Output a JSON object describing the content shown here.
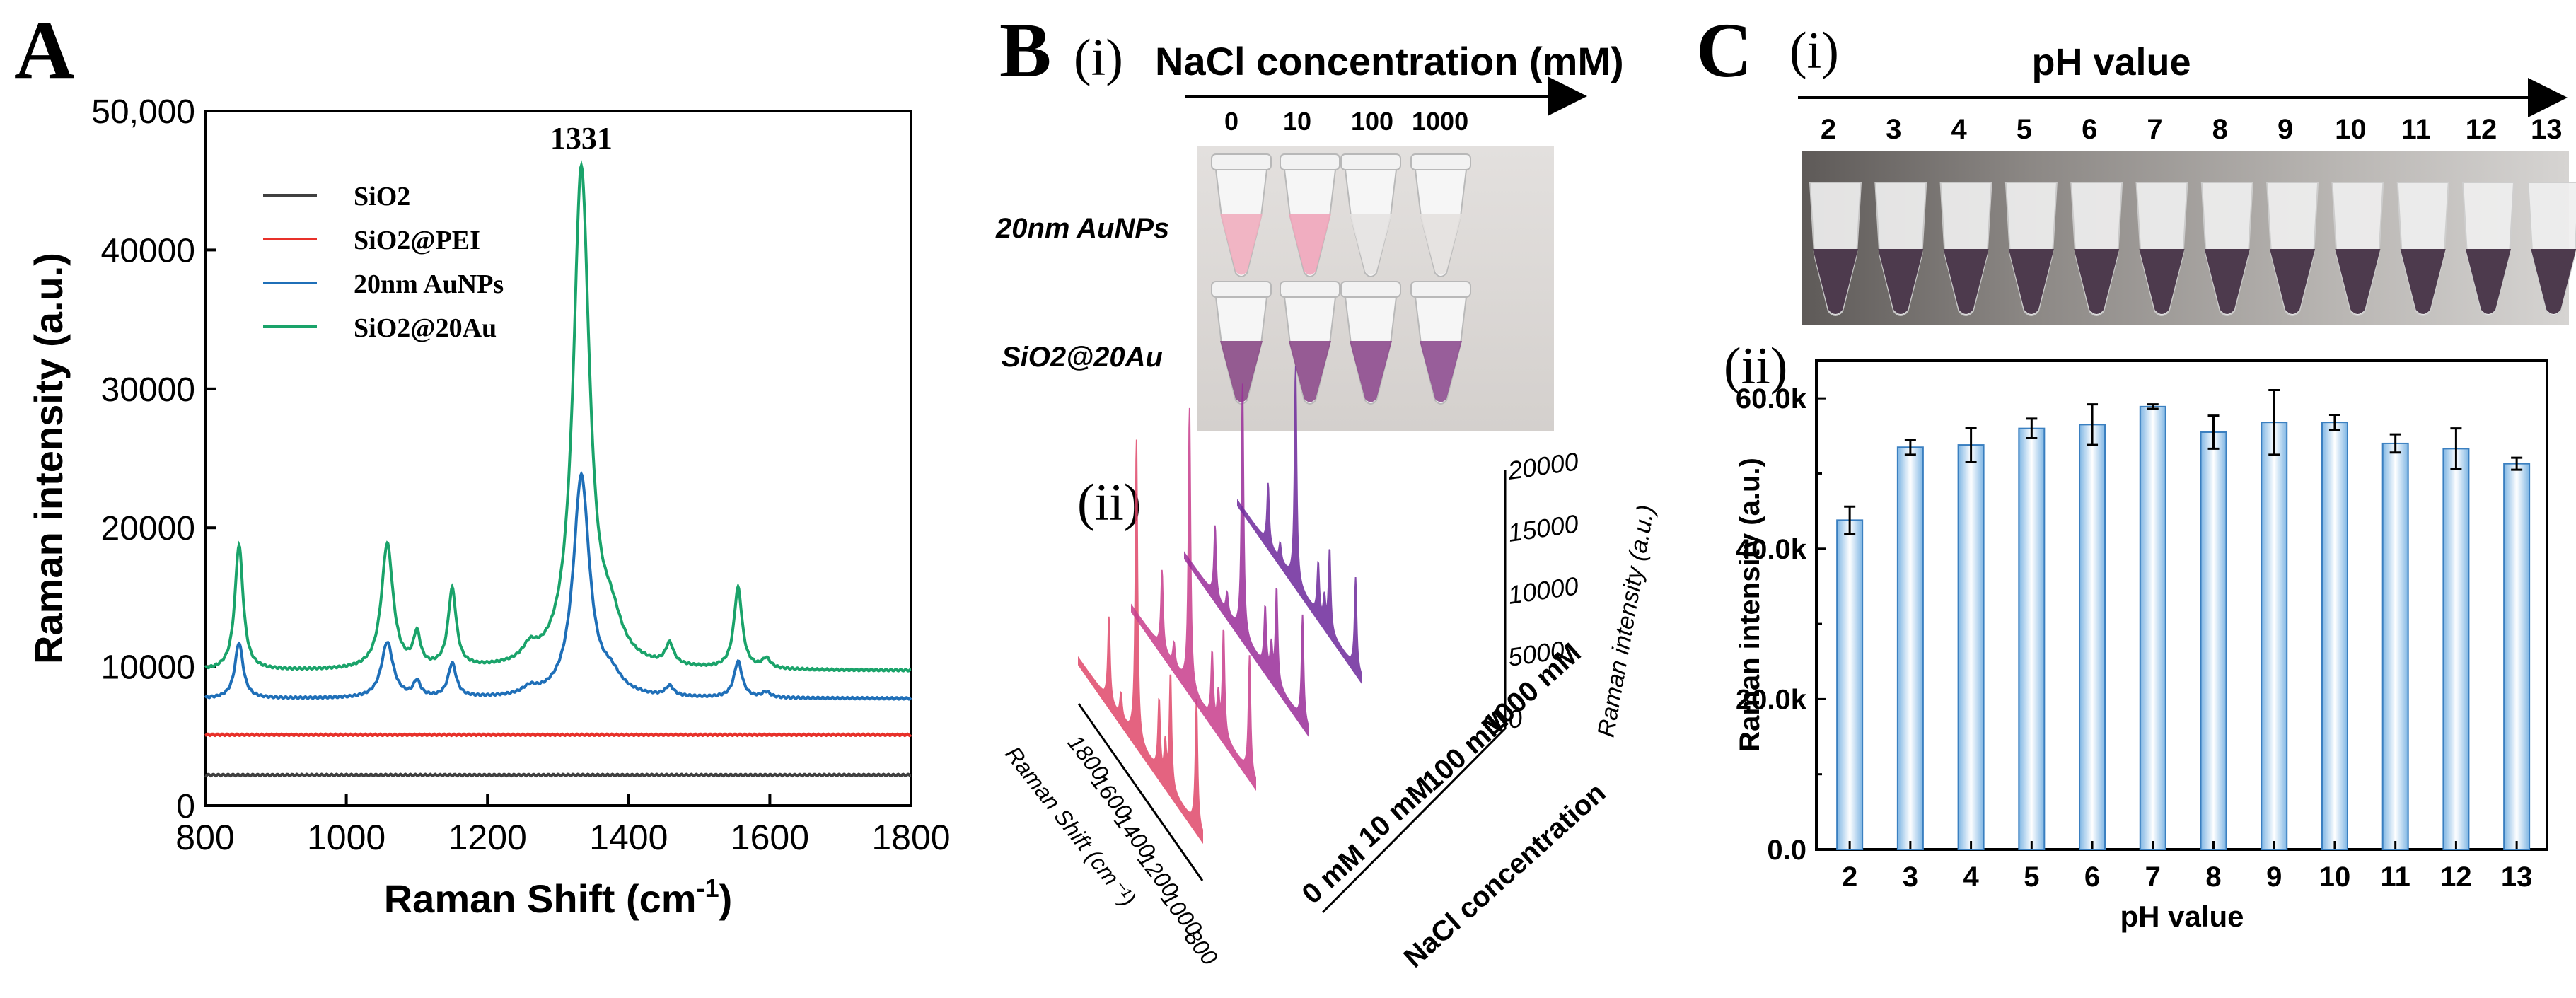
{
  "figure": {
    "panel_a_letter": "A",
    "panel_b_letter": "B",
    "panel_c_letter": "C"
  },
  "panel_b": {
    "sub_i": "(i)",
    "sub_ii": "(ii)",
    "nacl_title": "NaCl concentration (mM)",
    "concentrations": [
      "0",
      "10",
      "100",
      "1000"
    ],
    "row_labels": [
      "20nm AuNPs",
      "SiO2@20Au"
    ],
    "waterfall_z_ticks": [
      "20000",
      "15000",
      "10000",
      "5000",
      "0"
    ],
    "waterfall_z_label": "Raman intensity (a.u.)",
    "waterfall_x_ticks": [
      "1800",
      "1600",
      "1400",
      "1200",
      "1000",
      "800"
    ],
    "waterfall_x_label": "Raman Shift (cm⁻¹)",
    "waterfall_series_labels": [
      "0 mM",
      "10 mM",
      "100 mM",
      "1000 mM"
    ],
    "waterfall_y_label": "NaCl concentration",
    "colors": {
      "s0": "#e0486a",
      "s1": "#c83e8c",
      "s2": "#9a2d9a",
      "s3": "#6e2a9c"
    }
  },
  "panel_c": {
    "sub_i": "(i)",
    "sub_ii": "(ii)",
    "ph_title": "pH value",
    "ph_labels": [
      "2",
      "3",
      "4",
      "5",
      "6",
      "7",
      "8",
      "9",
      "10",
      "11",
      "12",
      "13"
    ]
  },
  "chart_data": [
    {
      "id": "A",
      "type": "line",
      "title": "",
      "xlabel": "Raman Shift (cm-1)",
      "ylabel": "Raman intensity (a.u.)",
      "xlim": [
        800,
        1800
      ],
      "ylim": [
        0,
        50000
      ],
      "x_ticks": [
        800,
        1000,
        1200,
        1400,
        1600,
        1800
      ],
      "y_ticks": [
        0,
        10000,
        20000,
        30000,
        40000,
        50000
      ],
      "x_tick_labels": [
        "800",
        "1000",
        "1200",
        "1400",
        "1600",
        "1800"
      ],
      "y_tick_labels": [
        "0",
        "10000",
        "20000",
        "30000",
        "40000",
        "50,000"
      ],
      "annotation": "1331",
      "legend_position": "top-left",
      "series": [
        {
          "name": "SiO2",
          "color": "#404040",
          "baseline": 2200,
          "peaks": []
        },
        {
          "name": "SiO2@PEI",
          "color": "#e8312a",
          "baseline": 5100,
          "peaks": []
        },
        {
          "name": "20nm AuNPs",
          "color": "#1f6fb8",
          "baseline": 7700,
          "peaks": [
            [
              848,
              4000,
              7
            ],
            [
              1058,
              4000,
              10
            ],
            [
              1100,
              1100,
              6
            ],
            [
              1150,
              2400,
              7
            ],
            [
              1260,
              500,
              12
            ],
            [
              1333,
              15900,
              14
            ],
            [
              1375,
              1200,
              18
            ],
            [
              1458,
              700,
              7
            ],
            [
              1555,
              2600,
              7
            ],
            [
              1595,
              400,
              7
            ]
          ]
        },
        {
          "name": "SiO2@20Au",
          "color": "#1aa36a",
          "baseline": 9700,
          "peaks": [
            [
              848,
              9000,
              7
            ],
            [
              1058,
              9000,
              10
            ],
            [
              1100,
              2300,
              6
            ],
            [
              1150,
              5600,
              7
            ],
            [
              1260,
              1000,
              12
            ],
            [
              1333,
              35900,
              14
            ],
            [
              1375,
              2500,
              18
            ],
            [
              1458,
              1500,
              7
            ],
            [
              1555,
              5800,
              7
            ],
            [
              1595,
              700,
              7
            ]
          ]
        }
      ]
    },
    {
      "id": "C-ii",
      "type": "bar",
      "title": "",
      "xlabel": "pH value",
      "ylabel": "Raman intensity (a.u.)",
      "categories": [
        "2",
        "3",
        "4",
        "5",
        "6",
        "7",
        "8",
        "9",
        "10",
        "11",
        "12",
        "13"
      ],
      "values": [
        43800,
        53500,
        53800,
        56000,
        56500,
        58900,
        55500,
        56800,
        56800,
        54000,
        53300,
        51300
      ],
      "errors": [
        1800,
        1000,
        2300,
        1300,
        2700,
        300,
        2200,
        4300,
        1000,
        1200,
        2700,
        800
      ],
      "ylim": [
        0,
        65000
      ],
      "y_ticks": [
        0,
        20000,
        40000,
        60000
      ],
      "y_tick_labels": [
        "0.0",
        "20.0k",
        "40.0k",
        "60.0k"
      ]
    }
  ]
}
